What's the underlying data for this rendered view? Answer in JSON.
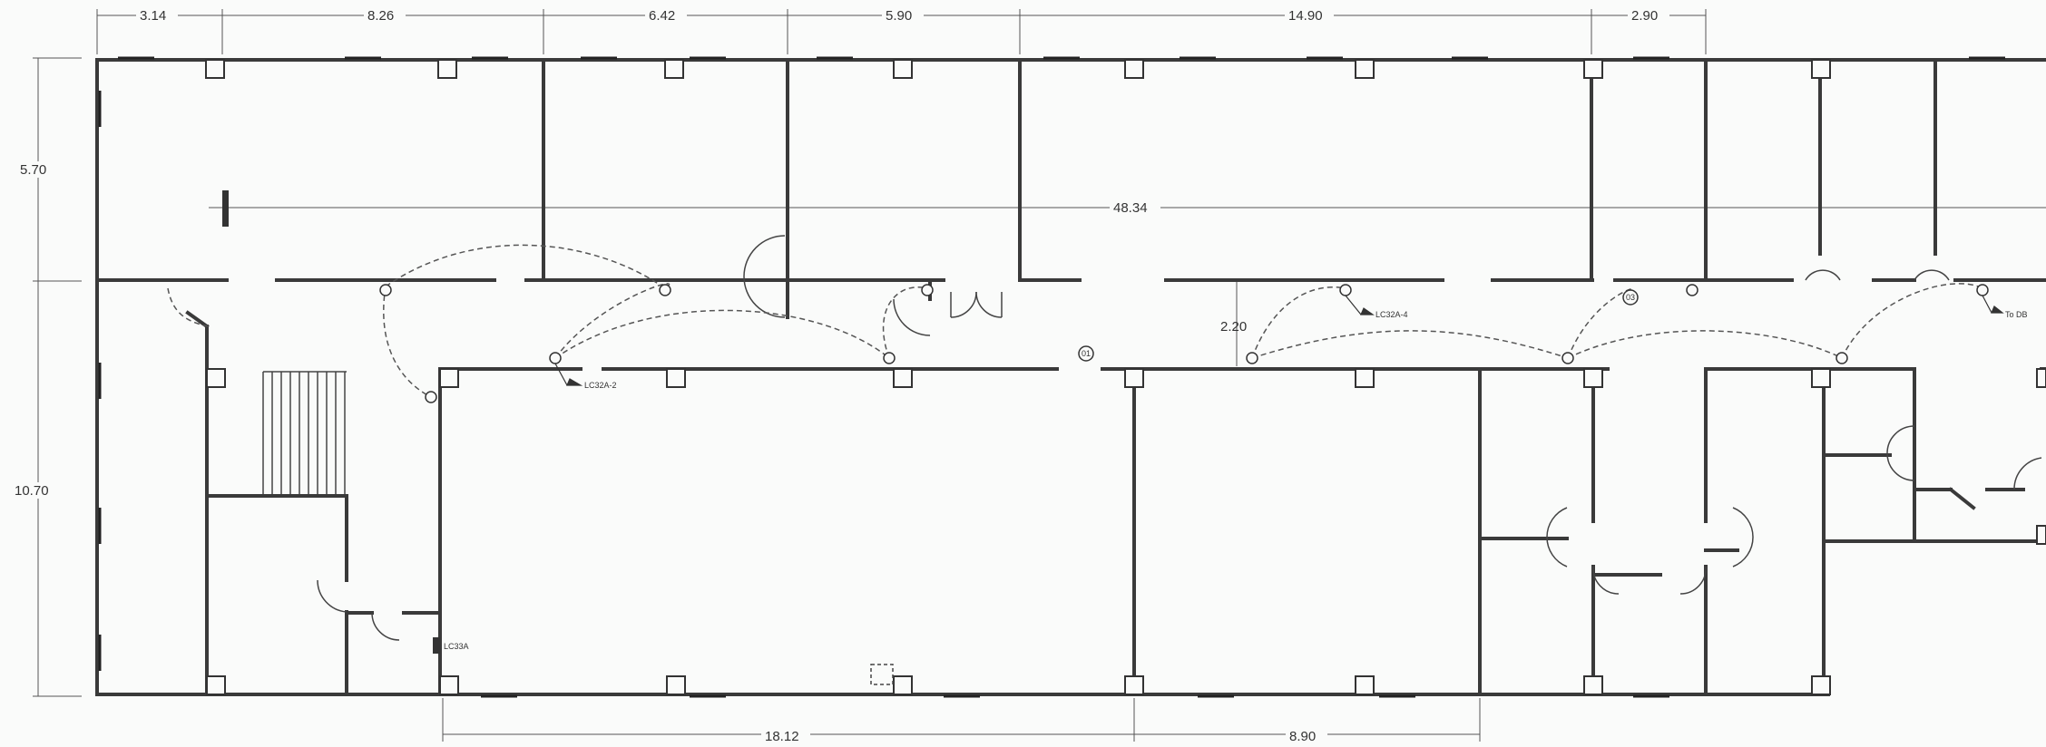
{
  "plan": {
    "dimensions": {
      "top": [
        "3.14",
        "8.26",
        "6.42",
        "5.90",
        "14.90",
        "2.90"
      ],
      "bottom": [
        "18.12",
        "8.90"
      ],
      "left": [
        "5.70",
        "10.70"
      ],
      "interior": [
        "48.34",
        "2.20"
      ]
    },
    "labels": {
      "circuit_1": "LC32A-2",
      "circuit_2": "LC32A-4",
      "panel": "LC33A",
      "to_db": "To DB",
      "tag_1": "01",
      "tag_2": "03"
    }
  }
}
